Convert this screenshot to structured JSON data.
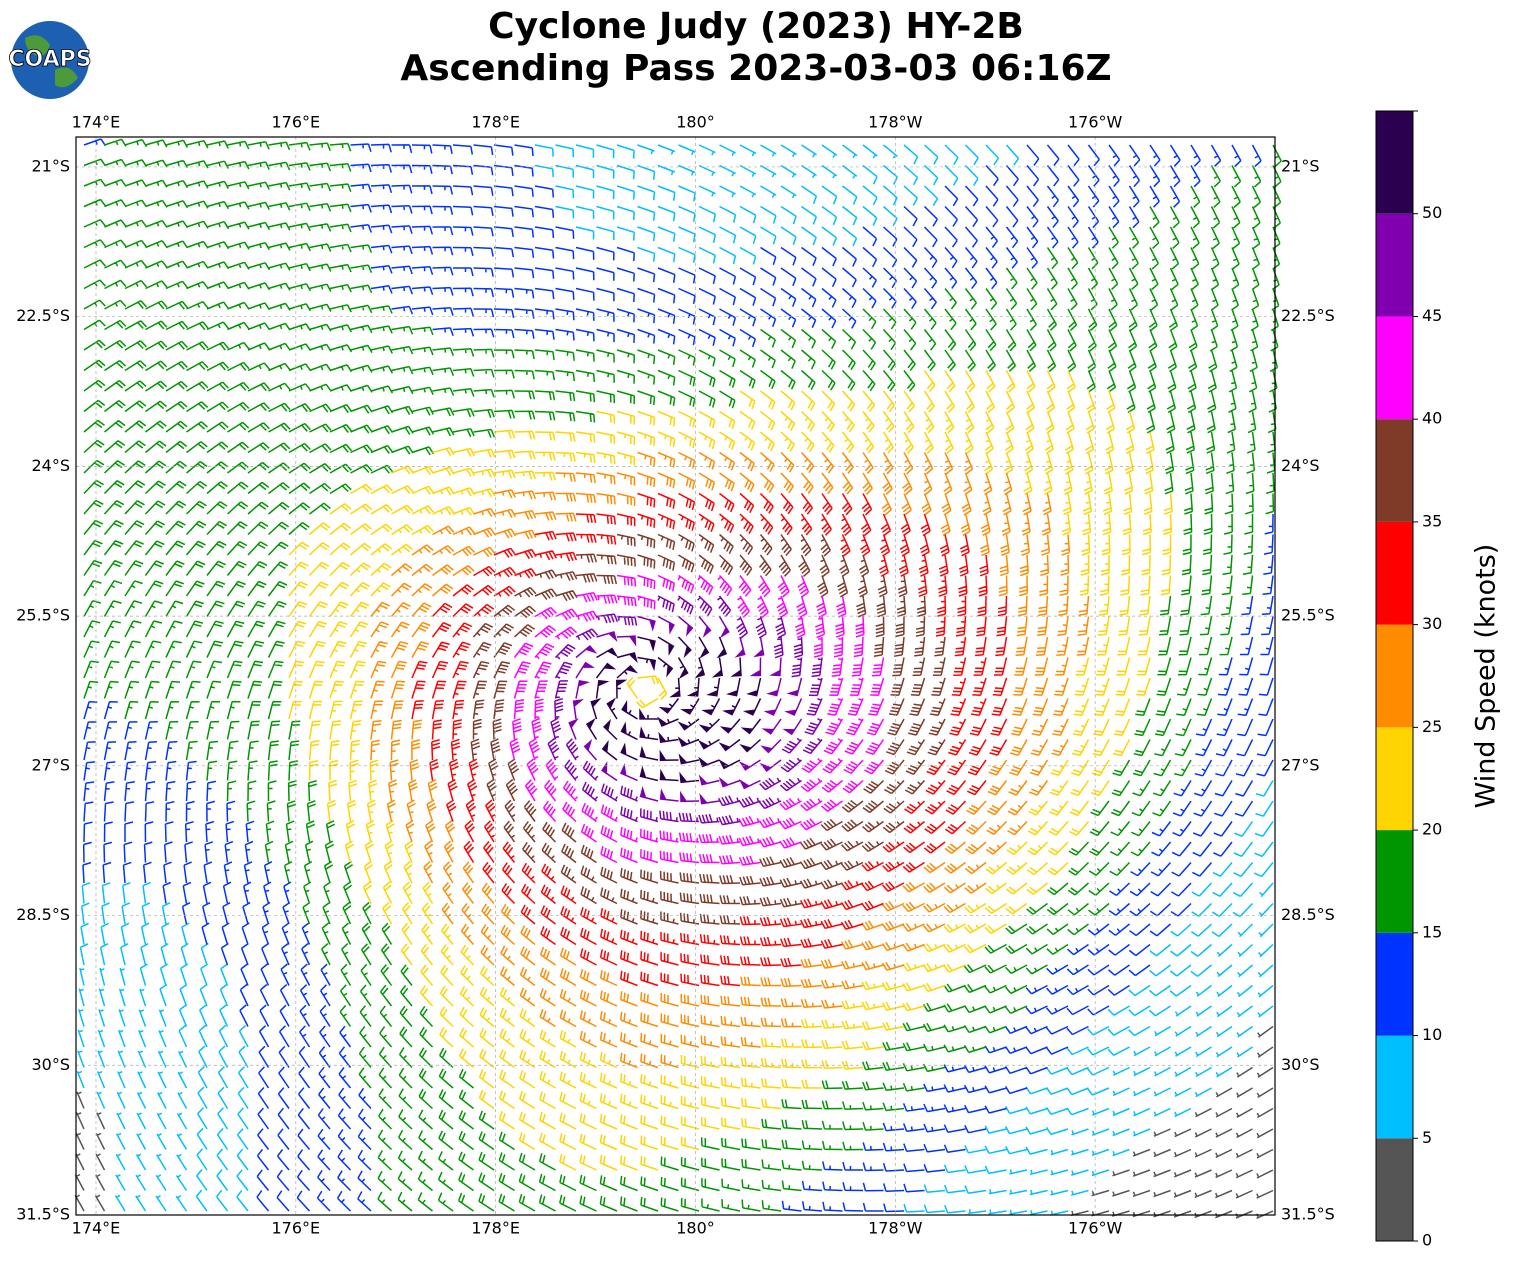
{
  "map": {
    "logo": "COAPS",
    "title": [
      "Cyclone Judy (2023) HY-2B",
      "Ascending Pass 2023-03-03 06:16Z"
    ],
    "xlim": [
      173.8,
      -174.2
    ],
    "ylim": [
      -31.5,
      -20.7
    ],
    "xticks": [
      {
        "value": 174,
        "label": "174°E"
      },
      {
        "value": 176,
        "label": "176°E"
      },
      {
        "value": 178,
        "label": "178°E"
      },
      {
        "value": 180,
        "label": "180°"
      },
      {
        "value": -178,
        "label": "178°W"
      },
      {
        "value": -176,
        "label": "176°W"
      }
    ],
    "yticks": [
      {
        "value": -21,
        "label": "21°S"
      },
      {
        "value": -22.5,
        "label": "22.5°S"
      },
      {
        "value": -24,
        "label": "24°S"
      },
      {
        "value": -25.5,
        "label": "25.5°S"
      },
      {
        "value": -27,
        "label": "27°S"
      },
      {
        "value": -28.5,
        "label": "28.5°S"
      },
      {
        "value": -30,
        "label": "30°S"
      },
      {
        "value": -31.5,
        "label": "31.5°S"
      }
    ],
    "grid": true,
    "colorbar": {
      "label": "Wind Speed (knots)",
      "lim": [
        0,
        55
      ],
      "ticks": [
        0,
        5,
        10,
        15,
        20,
        25,
        30,
        35,
        40,
        45,
        50
      ],
      "colors": [
        "#555555",
        "#00bfff",
        "#0033ff",
        "#009600",
        "#ffd400",
        "#ff8c00",
        "#ff0000",
        "#7f3a28",
        "#ff00ff",
        "#8000b0",
        "#2a004f"
      ]
    }
  }
}
